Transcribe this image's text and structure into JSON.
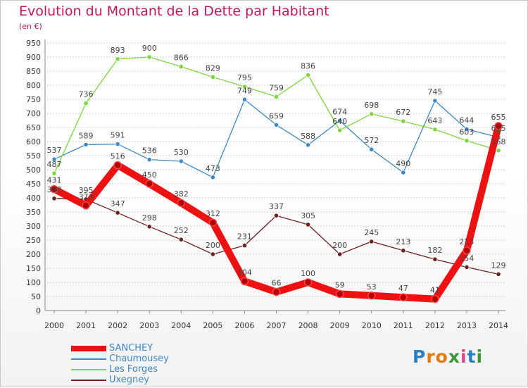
{
  "chart_data": {
    "type": "line",
    "title": "Evolution du Montant de la Dette par Habitant",
    "subtitle": "(en €)",
    "xlabel": "",
    "ylabel": "",
    "ylim": [
      0,
      950
    ],
    "yticks": [
      0,
      50,
      100,
      150,
      200,
      250,
      300,
      350,
      400,
      450,
      500,
      550,
      600,
      650,
      700,
      750,
      800,
      850,
      900,
      950
    ],
    "grid": true,
    "x": [
      "2000",
      "2001",
      "2002",
      "2003",
      "2004",
      "2005",
      "2006",
      "2007",
      "2008",
      "2009",
      "2010",
      "2011",
      "2012",
      "2013",
      "2014"
    ],
    "series": [
      {
        "name": "SANCHEY",
        "color": "#ee1111",
        "labelColor": "#ffffff",
        "emphasis": true,
        "values": [
          431,
          373,
          516,
          450,
          382,
          312,
          104,
          66,
          100,
          59,
          53,
          47,
          41,
          213,
          655
        ]
      },
      {
        "name": "Chaumousey",
        "color": "#3f88c5",
        "labelColor": "#3f88c5",
        "emphasis": false,
        "values": [
          537,
          589,
          591,
          536,
          530,
          473,
          749,
          659,
          588,
          674,
          572,
          490,
          745,
          644,
          615
        ]
      },
      {
        "name": "Les Forges",
        "color": "#7ed63e",
        "labelColor": "#7ed63e",
        "emphasis": false,
        "values": [
          487,
          736,
          893,
          900,
          866,
          829,
          795,
          759,
          836,
          640,
          698,
          672,
          643,
          603,
          568
        ]
      },
      {
        "name": "Uxegney",
        "color": "#6e1f1f",
        "labelColor": "#6e1f1f",
        "emphasis": false,
        "values": [
          398,
          395,
          347,
          298,
          252,
          200,
          231,
          337,
          305,
          200,
          245,
          213,
          182,
          154,
          129
        ]
      }
    ]
  },
  "logo": {
    "letters": [
      "P",
      "r",
      "o",
      "x",
      "i",
      "t",
      "i"
    ]
  }
}
